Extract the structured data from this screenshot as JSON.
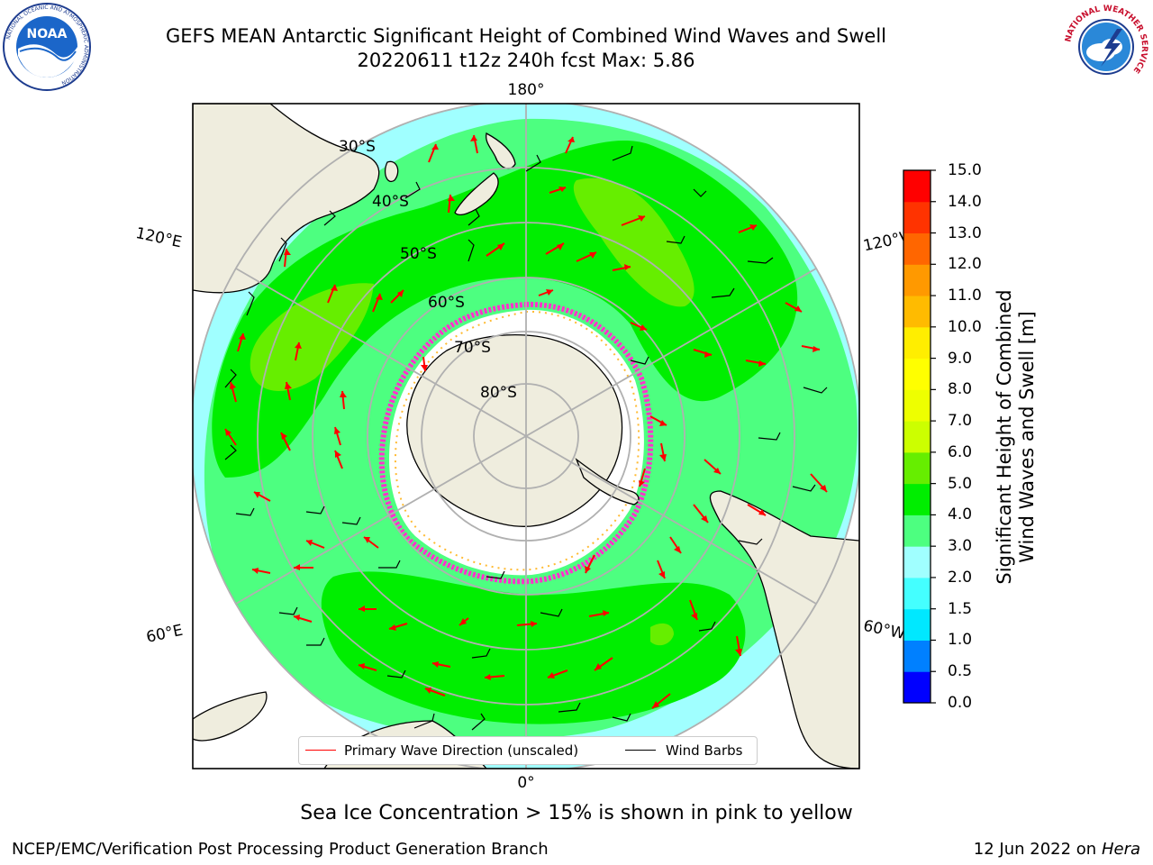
{
  "title": {
    "line1": "GEFS MEAN Antarctic Significant Height of Combined Wind Waves and Swell",
    "line2": "20220611 t12z 240h fcst   Max: 5.86"
  },
  "logos": {
    "left": {
      "name": "noaa-logo",
      "center_text": "NOAA",
      "ring_text": "NATIONAL OCEANIC AND ATMOSPHERIC ADMINISTRATION",
      "bottom_text": "U.S. DEPARTMENT OF COMMERCE"
    },
    "right": {
      "name": "nws-logo",
      "ring_text": "NATIONAL WEATHER SERVICE"
    }
  },
  "map": {
    "projection": "south-polar-stereographic",
    "longitude_labels": {
      "top": "180°",
      "bottom": "0°",
      "left_upper": "120°E",
      "left_lower": "60°E",
      "right_upper": "120°W",
      "right_lower": "60°W"
    },
    "latitude_labels": [
      "30°S",
      "40°S",
      "50°S",
      "60°S",
      "70°S",
      "80°S"
    ],
    "colors": {
      "land": "#efedde",
      "ice_free_background": "#ffffff",
      "grid": "#b0b0b0",
      "arrows": "#ff0000",
      "barbs": "#000000",
      "sea_ice": "#ff33cc"
    }
  },
  "colorbar": {
    "label_line1": "Significant Height of Combined",
    "label_line2": "Wind Waves and Swell [m]",
    "ticks": [
      "0.0",
      "0.5",
      "1.0",
      "1.5",
      "2.0",
      "3.0",
      "4.0",
      "5.0",
      "6.0",
      "7.0",
      "8.0",
      "9.0",
      "10.0",
      "11.0",
      "12.0",
      "13.0",
      "14.0",
      "15.0"
    ],
    "colors": [
      "#0000ff",
      "#0080ff",
      "#00e8ff",
      "#44ffff",
      "#a0ffff",
      "#4dff80",
      "#00ee00",
      "#66ee00",
      "#ccff00",
      "#eeff00",
      "#ffff00",
      "#ffee00",
      "#ffbb00",
      "#ff9900",
      "#ff6600",
      "#ff3300",
      "#ff0000"
    ]
  },
  "legend": {
    "wave_label": "Primary Wave Direction (unscaled)",
    "barb_label": "Wind Barbs"
  },
  "ice_note": "Sea Ice Concentration > 15% is shown in pink to yellow",
  "footer": {
    "left": "NCEP/EMC/Verification Post Processing Product Generation Branch",
    "right_text": "12 Jun 2022 on",
    "right_host": "Hera"
  }
}
